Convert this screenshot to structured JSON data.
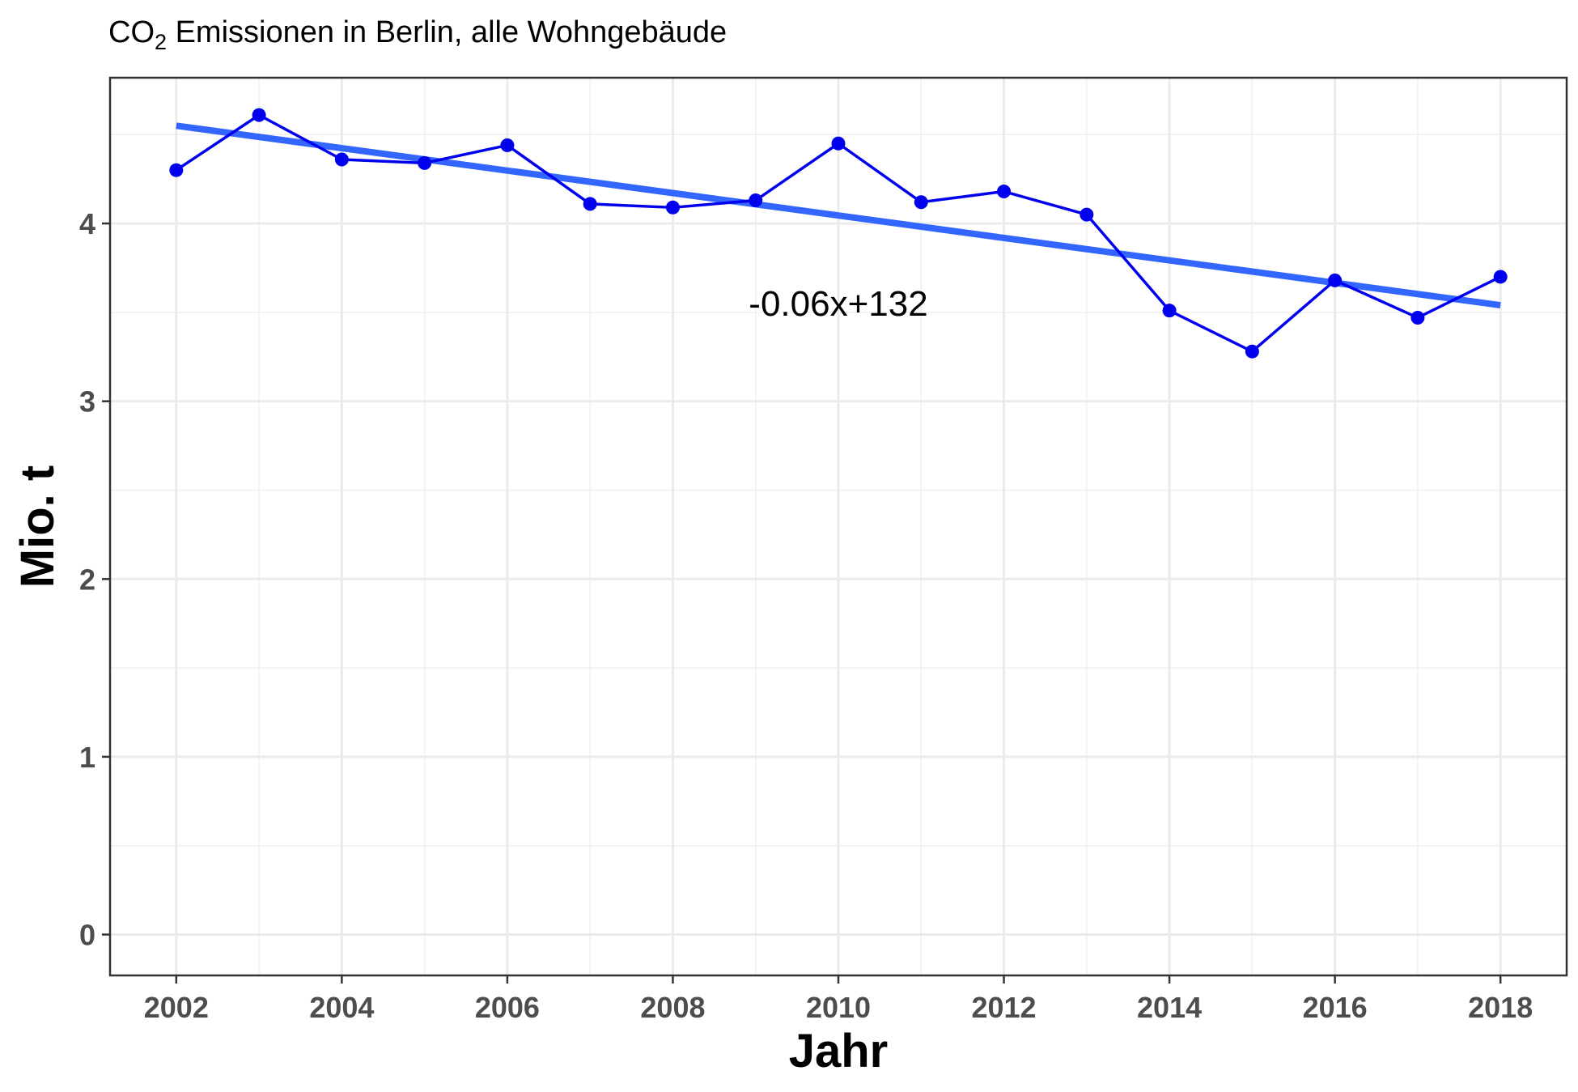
{
  "chart_data": {
    "type": "line",
    "title_prefix": "CO",
    "title_subscript": "2",
    "title_suffix": " Emissionen in Berlin, alle Wohngebäude",
    "xlabel": "Jahr",
    "ylabel": "Mio. t",
    "xlim": [
      2001.2,
      2018.8
    ],
    "ylim": [
      -0.23,
      4.82
    ],
    "x_ticks": [
      2002,
      2004,
      2006,
      2008,
      2010,
      2012,
      2014,
      2016,
      2018
    ],
    "x_tick_labels": [
      "2002",
      "2004",
      "2006",
      "2008",
      "2010",
      "2012",
      "2014",
      "2016",
      "2018"
    ],
    "y_ticks": [
      0,
      1,
      2,
      3,
      4
    ],
    "y_tick_labels": [
      "0",
      "1",
      "2",
      "3",
      "4"
    ],
    "grid": true,
    "series": [
      {
        "x": [
          2002,
          2003,
          2004,
          2005,
          2006,
          2007,
          2008,
          2009,
          2010,
          2011,
          2012,
          2013,
          2014,
          2015,
          2016,
          2017,
          2018
        ],
        "values": [
          4.3,
          4.61,
          4.36,
          4.34,
          4.44,
          4.11,
          4.09,
          4.13,
          4.45,
          4.12,
          4.18,
          4.05,
          3.51,
          3.28,
          3.68,
          3.47,
          3.7
        ],
        "color": "#0000ee"
      }
    ],
    "trendline": {
      "x": [
        2002,
        2018
      ],
      "values": [
        4.55,
        3.54
      ],
      "color": "#3366ff"
    },
    "annotation": {
      "text": "-0.06x+132",
      "x": 2010,
      "y": 3.55
    }
  }
}
